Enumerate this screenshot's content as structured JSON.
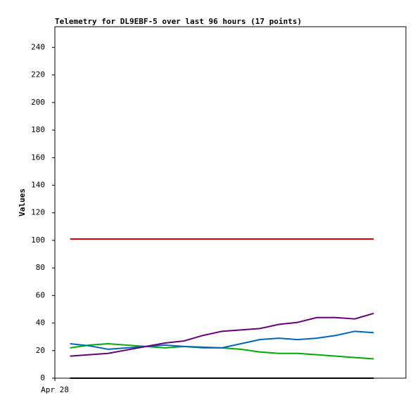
{
  "chart_data": {
    "type": "line",
    "title": "Telemetry for DL9EBF-5 over last 96 hours (17 points)",
    "y_label": "Values",
    "x": [
      0,
      1,
      2,
      3,
      4,
      5,
      6,
      7,
      8,
      9,
      10,
      11,
      12,
      13,
      14,
      15,
      16
    ],
    "xlim": [
      -0.8,
      17.7
    ],
    "xticks": [
      {
        "value": -0.8,
        "label": "Apr 28"
      }
    ],
    "ylim": [
      0,
      255
    ],
    "yticks": [
      0,
      20,
      40,
      60,
      80,
      100,
      120,
      140,
      160,
      180,
      200,
      220,
      240
    ],
    "grid": false,
    "series": [
      {
        "color": "#000000",
        "values": [
          0,
          0,
          0,
          0,
          0,
          0,
          0,
          0,
          0,
          0,
          0,
          0,
          0,
          0,
          0,
          0,
          0
        ]
      },
      {
        "color": "#dd0000",
        "values": [
          101,
          101,
          101,
          101,
          101,
          101,
          101,
          101,
          101,
          101,
          101,
          101,
          101,
          101,
          101,
          101,
          101
        ]
      },
      {
        "color": "#00aa00",
        "values": [
          22,
          24,
          25,
          24,
          23,
          22,
          23,
          22,
          22,
          21,
          19,
          18,
          18,
          17,
          16,
          15,
          14
        ]
      },
      {
        "color": "#0066bb",
        "values": [
          25,
          23.5,
          21,
          22,
          23,
          24,
          23,
          22.5,
          22,
          25,
          28,
          29,
          28,
          29,
          31,
          34,
          33
        ]
      },
      {
        "color": "#660077",
        "values": [
          16,
          17,
          18,
          20.5,
          23,
          25.5,
          27,
          31,
          34,
          35,
          36,
          39,
          40.5,
          44,
          44,
          43,
          47
        ]
      }
    ]
  }
}
